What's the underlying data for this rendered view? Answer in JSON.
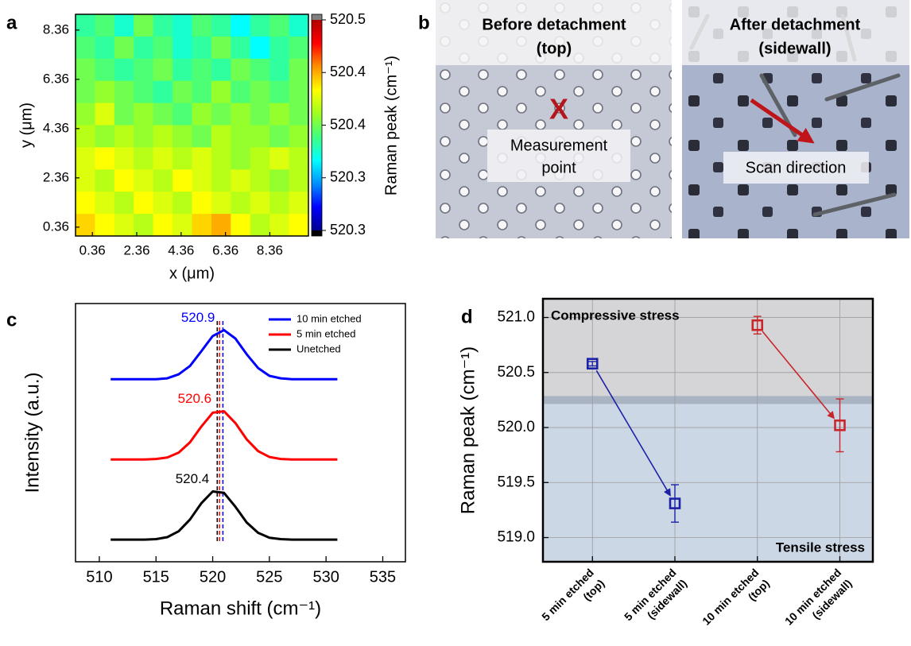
{
  "chart_data": [
    {
      "type": "heatmap",
      "label": "a",
      "xlabel": "x (μm)",
      "ylabel": "y (μm)",
      "xlim": [
        -0.4,
        10.1
      ],
      "ylim": [
        0,
        9
      ],
      "xticks": [
        0.36,
        2.36,
        4.36,
        6.36,
        8.36
      ],
      "yticks": [
        0.36,
        2.36,
        4.36,
        6.36,
        8.36
      ],
      "z": [
        [
          520.36,
          520.37,
          520.35,
          520.38,
          520.36,
          520.35,
          520.37,
          520.36,
          520.34,
          520.36,
          520.37,
          520.35
        ],
        [
          520.37,
          520.36,
          520.38,
          520.36,
          520.37,
          520.35,
          520.36,
          520.38,
          520.36,
          520.34,
          520.36,
          520.37
        ],
        [
          520.38,
          520.37,
          520.36,
          520.37,
          520.38,
          520.36,
          520.37,
          520.36,
          520.38,
          520.37,
          520.36,
          520.38
        ],
        [
          520.38,
          520.39,
          520.38,
          520.37,
          520.36,
          520.38,
          520.37,
          520.39,
          520.37,
          520.38,
          520.37,
          520.38
        ],
        [
          520.39,
          520.41,
          520.38,
          520.39,
          520.38,
          520.37,
          520.39,
          520.38,
          520.39,
          520.38,
          520.39,
          520.38
        ],
        [
          520.4,
          520.39,
          520.4,
          520.39,
          520.4,
          520.39,
          520.38,
          520.4,
          520.39,
          520.39,
          520.38,
          520.39
        ],
        [
          520.41,
          520.42,
          520.41,
          520.4,
          520.41,
          520.4,
          520.41,
          520.4,
          520.39,
          520.4,
          520.41,
          520.4
        ],
        [
          520.41,
          520.4,
          520.42,
          520.41,
          520.4,
          520.42,
          520.41,
          520.4,
          520.41,
          520.4,
          520.39,
          520.4
        ],
        [
          520.42,
          520.41,
          520.4,
          520.42,
          520.41,
          520.4,
          520.42,
          520.41,
          520.4,
          520.41,
          520.4,
          520.41
        ],
        [
          520.43,
          520.42,
          520.41,
          520.4,
          520.42,
          520.41,
          520.43,
          520.44,
          520.42,
          520.4,
          520.41,
          520.42
        ]
      ],
      "colorbar": {
        "label": "Raman peak (cm⁻¹)",
        "zlim": [
          520.26,
          520.5
        ],
        "ticks": [
          {
            "value": 520.26,
            "label": "520.3"
          },
          {
            "value": 520.32,
            "label": "520.3"
          },
          {
            "value": 520.38,
            "label": "520.4"
          },
          {
            "value": 520.44,
            "label": "520.4"
          },
          520.5
        ],
        "colors": [
          "#00008f",
          "#0000ff",
          "#0090ff",
          "#00ffff",
          "#40ff80",
          "#a0ff20",
          "#ffff00",
          "#ff9000",
          "#ff0000",
          "#b00000"
        ],
        "over_color": "#808080",
        "under_color": "#000000"
      }
    },
    {
      "type": "line",
      "label": "c",
      "xlabel": "Raman shift (cm⁻¹)",
      "ylabel": "Intensity (a.u.)",
      "x": [
        511,
        512,
        513,
        514,
        515,
        516,
        517,
        518,
        519,
        520,
        521,
        522,
        523,
        524,
        525,
        526,
        527,
        528,
        529,
        530,
        531
      ],
      "series": [
        {
          "name": "10 min etched",
          "color": "#0000ff",
          "values": [
            3.26,
            3.26,
            3.26,
            3.26,
            3.26,
            3.28,
            3.36,
            3.53,
            3.83,
            4.14,
            4.26,
            4.09,
            3.77,
            3.49,
            3.33,
            3.28,
            3.26,
            3.26,
            3.26,
            3.26,
            3.26
          ]
        },
        {
          "name": "5 min etched",
          "color": "#ff0000",
          "values": [
            1.63,
            1.63,
            1.63,
            1.63,
            1.64,
            1.67,
            1.77,
            1.98,
            2.3,
            2.58,
            2.61,
            2.37,
            2.04,
            1.8,
            1.68,
            1.64,
            1.63,
            1.63,
            1.63,
            1.63,
            1.63
          ]
        },
        {
          "name": "Unetched",
          "color": "#000000",
          "values": [
            0,
            0,
            0,
            0,
            0.01,
            0.05,
            0.17,
            0.41,
            0.74,
            0.98,
            0.95,
            0.67,
            0.35,
            0.14,
            0.04,
            0.01,
            0,
            0,
            0,
            0,
            0
          ]
        }
      ],
      "peaks": [
        520.9,
        520.6,
        520.4
      ],
      "xlim": [
        507.9,
        537
      ],
      "ylim": [
        -0.45,
        4.8
      ],
      "xticks": [
        510,
        515,
        520,
        525,
        530,
        535
      ],
      "legend": "upper right"
    },
    {
      "type": "errorbar",
      "label": "d",
      "ylabel": "Raman peak (cm⁻¹)",
      "categories": [
        [
          "5 min etched",
          "(top)"
        ],
        [
          "5 min etched",
          "(sidewall)"
        ],
        [
          "10 min etched",
          "(top)"
        ],
        [
          "10 min etched",
          "(sidewall)"
        ]
      ],
      "series": [
        {
          "color": "#1c22a6",
          "values": [
            520.58,
            519.31,
            null,
            null
          ],
          "errors": [
            0.02,
            0.17,
            null,
            null
          ]
        },
        {
          "color": "#c9262b",
          "values": [
            null,
            null,
            520.93,
            520.02
          ],
          "errors": [
            null,
            null,
            0.08,
            0.24
          ]
        }
      ],
      "ylim": [
        518.78,
        521.17
      ],
      "yticks": [
        {
          "value": 519,
          "label": "519.0"
        },
        519.5,
        {
          "value": 520,
          "label": "520.0"
        },
        520.5,
        {
          "value": 521,
          "label": "521.0"
        }
      ],
      "grid": true,
      "arrows": true,
      "regions": [
        {
          "name": "Compressive stress",
          "range": [
            520.25,
            521.17
          ],
          "color": "#d5d5d7"
        },
        {
          "name": "Tensile stress",
          "range": [
            518.78,
            520.25
          ],
          "color": "#ccd7e6"
        }
      ]
    }
  ],
  "image_panel": {
    "label": "b",
    "left": {
      "title": [
        "Before detachment",
        "(top)"
      ],
      "marker": "X",
      "caption": [
        "Measurement",
        "point"
      ]
    },
    "right": {
      "title": [
        "After detachment",
        "(sidewall)"
      ],
      "caption": "Scan direction"
    }
  }
}
